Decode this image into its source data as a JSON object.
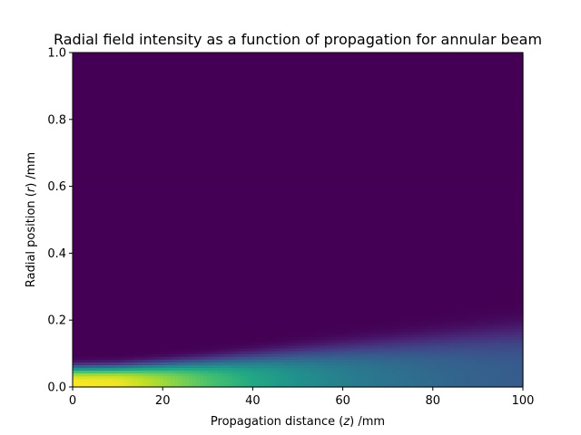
{
  "chart_data": {
    "type": "heatmap",
    "title": "Radial field intensity as a function of propagation for annular beam",
    "xlabel": {
      "pre": "Propagation distance (",
      "var": "z",
      "post": ") /mm"
    },
    "ylabel": {
      "pre": "Radial position (",
      "var": "r",
      "post": ") /mm"
    },
    "xlim": [
      0,
      100
    ],
    "ylim": [
      0.0,
      1.0
    ],
    "xticks": [
      0,
      20,
      40,
      60,
      80,
      100
    ],
    "xtick_labels": [
      "0",
      "20",
      "40",
      "60",
      "80",
      "100"
    ],
    "yticks": [
      0.0,
      0.2,
      0.4,
      0.6,
      0.8,
      1.0
    ],
    "ytick_labels": [
      "0.0",
      "0.2",
      "0.4",
      "0.6",
      "0.8",
      "1.0"
    ],
    "colormap": "viridis",
    "grid": false,
    "beam_profile": {
      "z": [
        0,
        10,
        20,
        30,
        40,
        50,
        60,
        70,
        80,
        90,
        100
      ],
      "peak_intensity": [
        1.0,
        0.98,
        0.86,
        0.72,
        0.6,
        0.5,
        0.43,
        0.38,
        0.34,
        0.31,
        0.29
      ],
      "width_r": [
        0.06,
        0.062,
        0.07,
        0.08,
        0.092,
        0.105,
        0.118,
        0.13,
        0.143,
        0.156,
        0.168
      ]
    }
  }
}
